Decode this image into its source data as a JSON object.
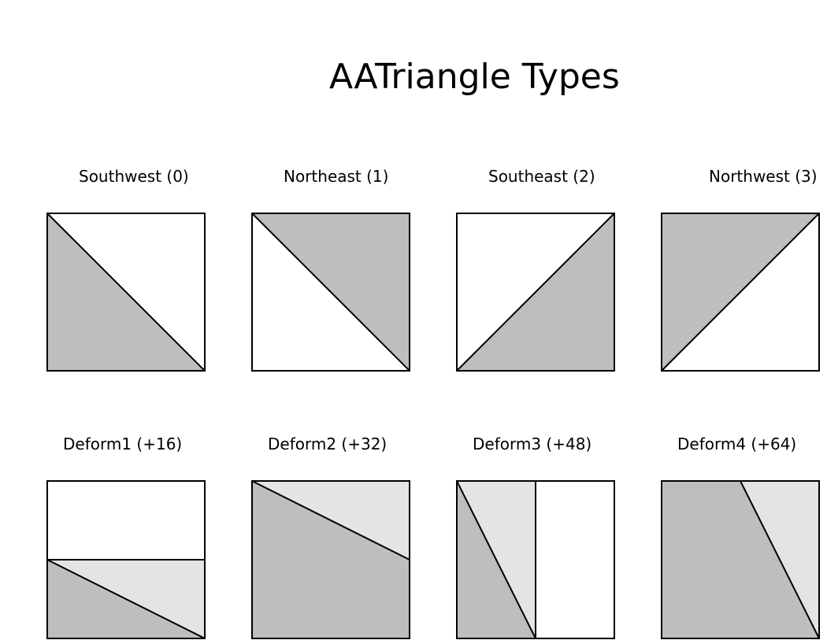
{
  "title": "AATriangle Types",
  "colors": {
    "fill_dark": "#bebebe",
    "fill_light": "#e4e4e4",
    "background": "#ffffff",
    "stroke": "#000000"
  },
  "tiles": [
    {
      "label": "Southwest (0)"
    },
    {
      "label": "Northeast (1)"
    },
    {
      "label": "Southeast (2)"
    },
    {
      "label": "Northwest (3)"
    },
    {
      "label": "Deform1 (+16)"
    },
    {
      "label": "Deform2 (+32)"
    },
    {
      "label": "Deform3 (+48)"
    },
    {
      "label": "Deform4 (+64)"
    }
  ]
}
